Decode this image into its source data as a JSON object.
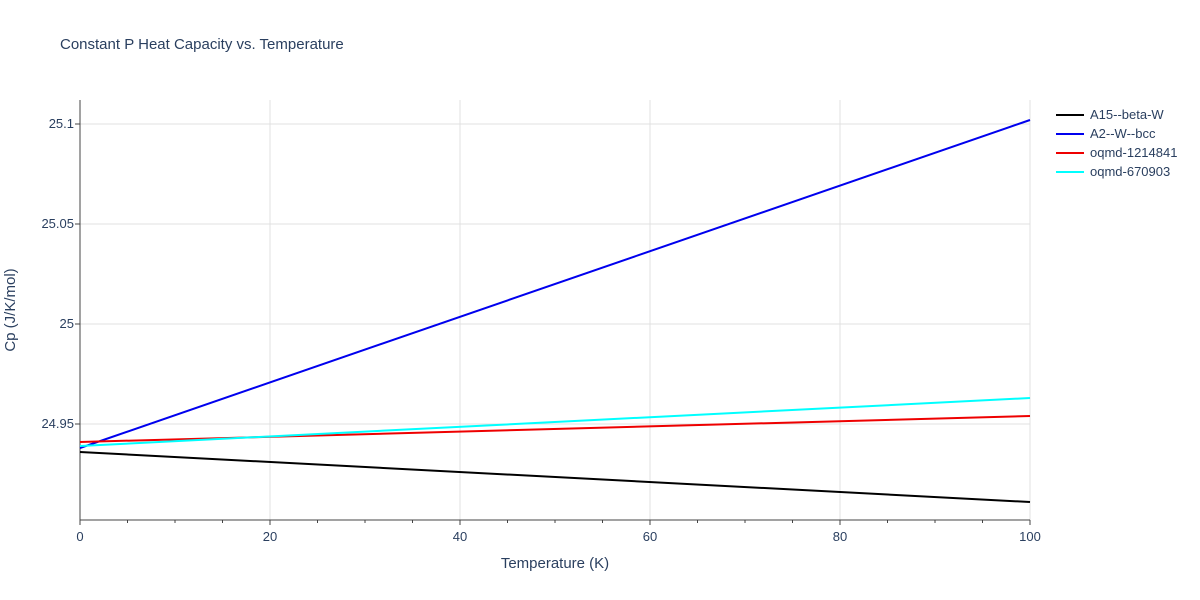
{
  "chart_data": {
    "type": "line",
    "title": "Constant P Heat Capacity vs. Temperature",
    "xlabel": "Temperature (K)",
    "ylabel": "Cp (J/K/mol)",
    "xlim": [
      0,
      100
    ],
    "ylim": [
      24.902,
      25.112
    ],
    "x_ticks": [
      0,
      20,
      40,
      60,
      80,
      100
    ],
    "x_tick_labels": [
      "0",
      "20",
      "40",
      "60",
      "80",
      "100"
    ],
    "y_ticks": [
      24.95,
      25.0,
      25.05,
      25.1
    ],
    "y_tick_labels": [
      "24.95",
      "25",
      "25.05",
      "25.1"
    ],
    "grid": true,
    "legend_position": "top-right",
    "x": [
      0,
      100
    ],
    "series": [
      {
        "name": "A15--beta-W",
        "color": "#000000",
        "values": [
          24.936,
          24.911
        ]
      },
      {
        "name": "A2--W--bcc",
        "color": "#0000ee",
        "values": [
          24.938,
          25.102
        ]
      },
      {
        "name": "oqmd-1214841",
        "color": "#ee0000",
        "values": [
          24.941,
          24.954
        ]
      },
      {
        "name": "oqmd-670903",
        "color": "#00ffff",
        "values": [
          24.939,
          24.963
        ]
      }
    ]
  }
}
